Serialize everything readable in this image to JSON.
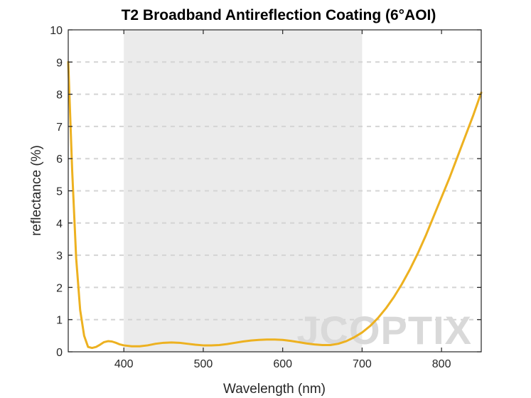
{
  "chart_data": {
    "type": "line",
    "title": "T2 Broadband Antireflection Coating (6°AOI)",
    "xlabel": "Wavelength (nm)",
    "ylabel": "reflectance (%)",
    "xlim": [
      330,
      850
    ],
    "ylim": [
      0,
      10
    ],
    "xticks": [
      400,
      500,
      600,
      700,
      800
    ],
    "yticks": [
      0,
      1,
      2,
      3,
      4,
      5,
      6,
      7,
      8,
      9,
      10
    ],
    "grid": "horizontal-dashed",
    "legend": "none",
    "shaded_band": {
      "x_start": 400,
      "x_end": 700,
      "color": "#ebebeb"
    },
    "series": [
      {
        "color": "#edb120",
        "x": [
          330,
          335,
          340,
          345,
          350,
          355,
          360,
          365,
          370,
          375,
          380,
          385,
          390,
          395,
          400,
          410,
          420,
          430,
          440,
          450,
          460,
          470,
          480,
          490,
          500,
          510,
          520,
          530,
          540,
          550,
          560,
          570,
          580,
          590,
          600,
          610,
          620,
          630,
          640,
          650,
          660,
          670,
          680,
          690,
          700,
          710,
          720,
          730,
          740,
          750,
          760,
          770,
          780,
          790,
          800,
          810,
          820,
          830,
          840,
          850
        ],
        "y": [
          9.0,
          5.6,
          2.9,
          1.3,
          0.5,
          0.15,
          0.12,
          0.15,
          0.22,
          0.3,
          0.33,
          0.32,
          0.28,
          0.23,
          0.2,
          0.17,
          0.17,
          0.2,
          0.25,
          0.28,
          0.29,
          0.28,
          0.25,
          0.22,
          0.2,
          0.2,
          0.21,
          0.24,
          0.28,
          0.32,
          0.35,
          0.37,
          0.38,
          0.38,
          0.37,
          0.34,
          0.3,
          0.26,
          0.23,
          0.21,
          0.21,
          0.25,
          0.33,
          0.45,
          0.6,
          0.8,
          1.05,
          1.35,
          1.7,
          2.1,
          2.55,
          3.05,
          3.6,
          4.2,
          4.8,
          5.4,
          6.05,
          6.7,
          7.35,
          8.05
        ]
      }
    ],
    "watermark": "JCOPTIX"
  }
}
